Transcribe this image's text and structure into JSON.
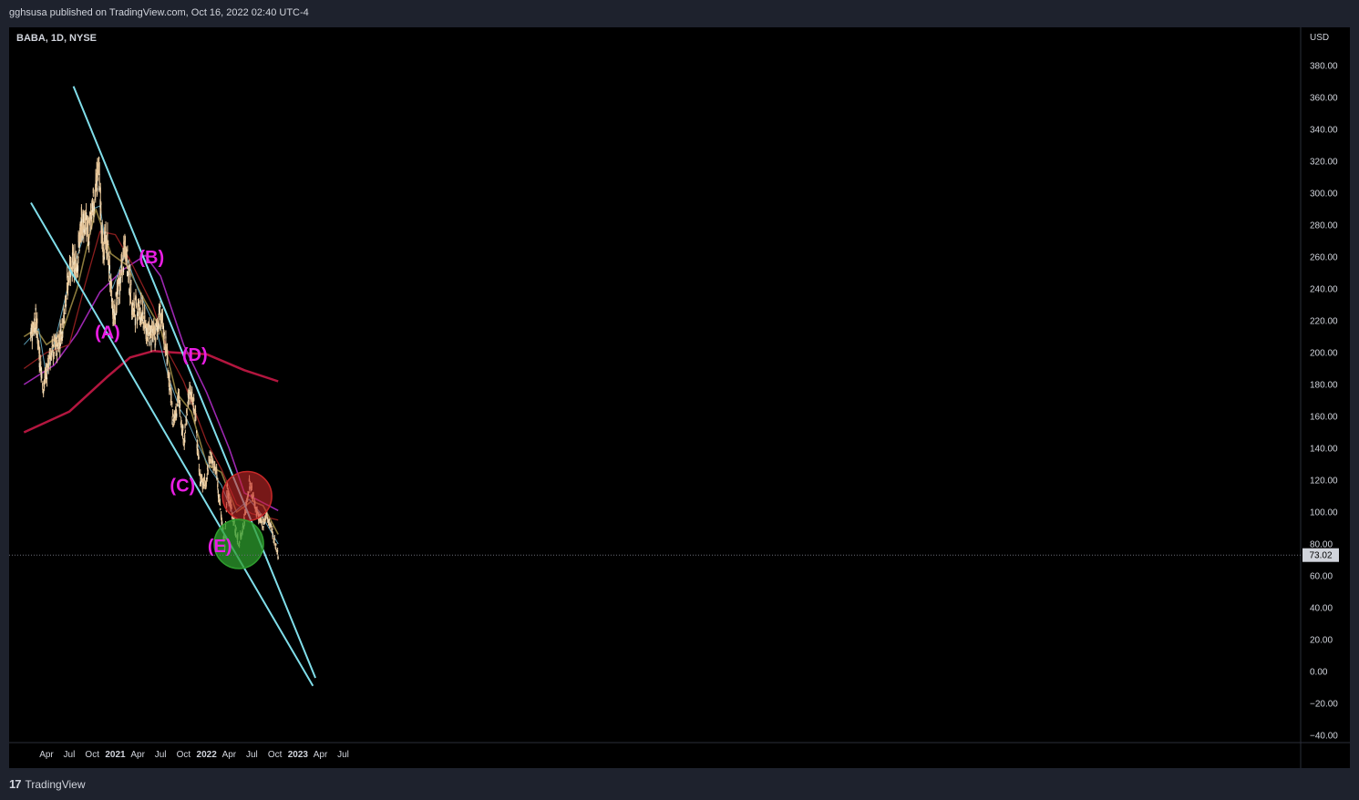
{
  "header": {
    "publish_note": "gghsusa published on TradingView.com, Oct 16, 2022 02:40 UTC-4"
  },
  "footer": {
    "brand_logo": "17",
    "brand_name": "TradingView"
  },
  "chart_data": {
    "type": "candlestick",
    "title": "BABA, 1D, NYSE",
    "currency_label": "USD",
    "current_price": 73.02,
    "current_price_label": "73.02",
    "y_ticks": [
      "380.00",
      "360.00",
      "340.00",
      "320.00",
      "300.00",
      "280.00",
      "260.00",
      "240.00",
      "220.00",
      "200.00",
      "180.00",
      "160.00",
      "140.00",
      "120.00",
      "100.00",
      "80.00",
      "60.00",
      "40.00",
      "20.00",
      "0.00",
      "−20.00",
      "−40.00"
    ],
    "x_ticks": [
      "Apr",
      "Jul",
      "Oct",
      "2021",
      "Apr",
      "Jul",
      "Oct",
      "2022",
      "Apr",
      "Jul",
      "Oct",
      "2023",
      "Apr",
      "Jul"
    ],
    "ylim": [
      -45,
      385
    ],
    "colors": {
      "candles": "#e8c79a",
      "channel_lines": "#80deea",
      "ma_short": "#5b9bb3",
      "ma_mid": "#8a7a3c",
      "ma_red": "#8b1e1e",
      "ma_magenta": "#9c27b0",
      "ma_200": "#b3163f",
      "labels": "#e91ee3",
      "circle_red": "#c62828",
      "circle_green": "#2e9d2e"
    },
    "price_path": [
      {
        "date": "2020-01-28",
        "close": 212
      },
      {
        "date": "2020-02-18",
        "close": 222
      },
      {
        "date": "2020-03-18",
        "close": 178
      },
      {
        "date": "2020-04-15",
        "close": 198
      },
      {
        "date": "2020-05-20",
        "close": 207
      },
      {
        "date": "2020-06-10",
        "close": 222
      },
      {
        "date": "2020-07-06",
        "close": 258
      },
      {
        "date": "2020-07-28",
        "close": 252
      },
      {
        "date": "2020-08-25",
        "close": 285
      },
      {
        "date": "2020-09-20",
        "close": 275
      },
      {
        "date": "2020-10-12",
        "close": 300
      },
      {
        "date": "2020-10-28",
        "close": 315
      },
      {
        "date": "2020-11-10",
        "close": 268
      },
      {
        "date": "2020-12-01",
        "close": 268
      },
      {
        "date": "2020-12-24",
        "close": 222
      },
      {
        "date": "2021-01-10",
        "close": 236
      },
      {
        "date": "2021-02-12",
        "close": 268
      },
      {
        "date": "2021-03-10",
        "close": 228
      },
      {
        "date": "2021-04-10",
        "close": 228
      },
      {
        "date": "2021-05-12",
        "close": 212
      },
      {
        "date": "2021-06-10",
        "close": 210
      },
      {
        "date": "2021-06-28",
        "close": 226
      },
      {
        "date": "2021-07-26",
        "close": 200
      },
      {
        "date": "2021-08-20",
        "close": 156
      },
      {
        "date": "2021-09-10",
        "close": 172
      },
      {
        "date": "2021-10-04",
        "close": 144
      },
      {
        "date": "2021-10-25",
        "close": 178
      },
      {
        "date": "2021-11-18",
        "close": 160
      },
      {
        "date": "2021-12-06",
        "close": 120
      },
      {
        "date": "2021-12-30",
        "close": 118
      },
      {
        "date": "2022-01-14",
        "close": 136
      },
      {
        "date": "2022-02-10",
        "close": 124
      },
      {
        "date": "2022-03-14",
        "close": 78
      },
      {
        "date": "2022-03-25",
        "close": 115
      },
      {
        "date": "2022-04-20",
        "close": 94
      },
      {
        "date": "2022-05-10",
        "close": 80
      },
      {
        "date": "2022-06-01",
        "close": 95
      },
      {
        "date": "2022-06-21",
        "close": 118
      },
      {
        "date": "2022-07-06",
        "close": 110
      },
      {
        "date": "2022-07-20",
        "close": 100
      },
      {
        "date": "2022-08-10",
        "close": 92
      },
      {
        "date": "2022-08-29",
        "close": 98
      },
      {
        "date": "2022-09-20",
        "close": 88
      },
      {
        "date": "2022-10-14",
        "close": 73
      }
    ],
    "series": [
      {
        "style": "ma_200",
        "points": [
          [
            "2020-01-02",
            150
          ],
          [
            "2020-07-01",
            163
          ],
          [
            "2020-12-01",
            185
          ],
          [
            "2021-03-01",
            197
          ],
          [
            "2021-06-01",
            201
          ],
          [
            "2021-09-01",
            200
          ],
          [
            "2022-01-01",
            199
          ],
          [
            "2022-06-01",
            189
          ],
          [
            "2022-10-14",
            182
          ]
        ]
      },
      {
        "style": "ma_magenta",
        "points": [
          [
            "2020-01-02",
            180
          ],
          [
            "2020-05-01",
            192
          ],
          [
            "2020-08-01",
            212
          ],
          [
            "2020-11-01",
            238
          ],
          [
            "2021-02-01",
            252
          ],
          [
            "2021-05-01",
            261
          ],
          [
            "2021-07-01",
            248
          ],
          [
            "2021-10-01",
            205
          ],
          [
            "2022-01-01",
            175
          ],
          [
            "2022-04-01",
            140
          ],
          [
            "2022-06-01",
            112
          ],
          [
            "2022-08-01",
            107
          ],
          [
            "2022-10-14",
            101
          ]
        ]
      },
      {
        "style": "ma_red",
        "points": [
          [
            "2020-01-02",
            190
          ],
          [
            "2020-04-01",
            200
          ],
          [
            "2020-07-01",
            205
          ],
          [
            "2020-09-01",
            242
          ],
          [
            "2020-11-01",
            276
          ],
          [
            "2021-01-01",
            274
          ],
          [
            "2021-03-01",
            258
          ],
          [
            "2021-06-01",
            229
          ],
          [
            "2021-08-01",
            200
          ],
          [
            "2021-10-01",
            182
          ],
          [
            "2022-01-01",
            144
          ],
          [
            "2022-03-01",
            127
          ],
          [
            "2022-05-01",
            105
          ],
          [
            "2022-07-01",
            99
          ],
          [
            "2022-10-14",
            95
          ]
        ]
      },
      {
        "style": "ma_mid",
        "points": [
          [
            "2020-01-02",
            210
          ],
          [
            "2020-02-20",
            215
          ],
          [
            "2020-04-01",
            205
          ],
          [
            "2020-06-01",
            212
          ],
          [
            "2020-08-01",
            240
          ],
          [
            "2020-10-15",
            290
          ],
          [
            "2020-12-15",
            262
          ],
          [
            "2021-02-15",
            255
          ],
          [
            "2021-05-01",
            232
          ],
          [
            "2021-07-01",
            215
          ],
          [
            "2021-09-01",
            175
          ],
          [
            "2021-11-01",
            163
          ],
          [
            "2022-01-01",
            130
          ],
          [
            "2022-03-01",
            125
          ],
          [
            "2022-05-01",
            100
          ],
          [
            "2022-07-01",
            107
          ],
          [
            "2022-08-15",
            104
          ],
          [
            "2022-10-14",
            86
          ]
        ]
      },
      {
        "style": "ma_short",
        "points": [
          [
            "2020-01-02",
            205
          ],
          [
            "2020-03-01",
            215
          ],
          [
            "2020-04-01",
            185
          ],
          [
            "2020-07-01",
            245
          ],
          [
            "2020-10-01",
            290
          ],
          [
            "2020-11-01",
            292
          ],
          [
            "2020-12-20",
            240
          ],
          [
            "2021-02-10",
            262
          ],
          [
            "2021-04-01",
            240
          ],
          [
            "2021-06-15",
            214
          ],
          [
            "2021-08-01",
            185
          ],
          [
            "2021-09-15",
            165
          ],
          [
            "2021-10-15",
            158
          ],
          [
            "2021-11-20",
            145
          ],
          [
            "2022-01-15",
            127
          ],
          [
            "2022-03-01",
            117
          ],
          [
            "2022-04-15",
            99
          ],
          [
            "2022-06-20",
            108
          ],
          [
            "2022-08-01",
            100
          ],
          [
            "2022-10-14",
            80
          ]
        ]
      }
    ],
    "channel_lines": [
      {
        "from": [
          "2020-07-18",
          367
        ],
        "to": [
          "2023-03-12",
          -4
        ]
      },
      {
        "from": [
          "2020-01-30",
          294
        ],
        "to": [
          "2023-03-02",
          -9
        ]
      }
    ],
    "wave_labels": [
      {
        "text": "(A)",
        "date": "2020-12-01",
        "price": 209
      },
      {
        "text": "(B)",
        "date": "2021-05-26",
        "price": 256
      },
      {
        "text": "(C)",
        "date": "2021-09-27",
        "price": 113
      },
      {
        "text": "(D)",
        "date": "2021-11-15",
        "price": 195
      },
      {
        "text": "(E)",
        "date": "2022-02-23",
        "price": 75
      }
    ],
    "markers": [
      {
        "name": "red-circle",
        "date": "2022-06-12",
        "price": 110
      },
      {
        "name": "green-circle",
        "date": "2022-05-10",
        "price": 80
      }
    ]
  }
}
